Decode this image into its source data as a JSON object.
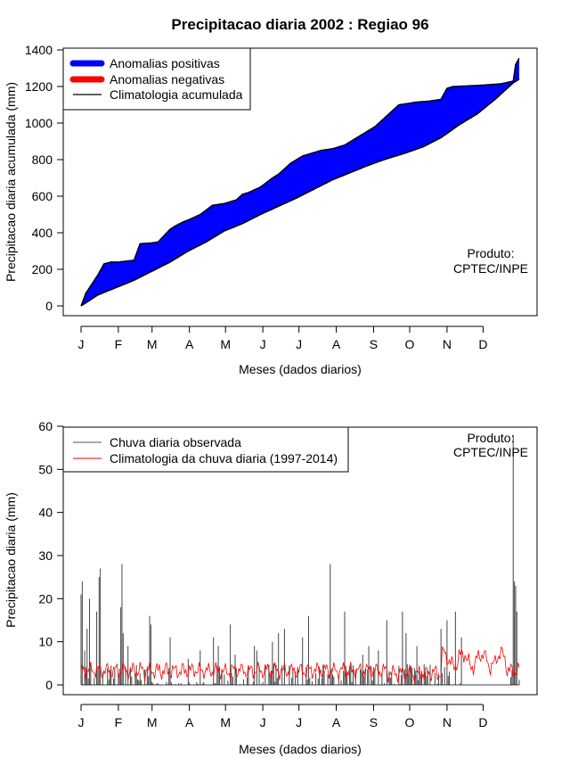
{
  "title": "Precipitacao diaria 2002 : Regiao 96",
  "chart_data": [
    {
      "type": "area",
      "ylabel": "Precipitacao diaria acumulada (mm)",
      "xlabel": "Meses (dados diarios)",
      "month_labels": [
        "J",
        "F",
        "M",
        "A",
        "M",
        "J",
        "J",
        "A",
        "S",
        "O",
        "N",
        "D"
      ],
      "ylim": [
        0,
        1400
      ],
      "yticks": [
        0,
        200,
        400,
        600,
        800,
        1000,
        1200,
        1400
      ],
      "legend": {
        "position": "top-left",
        "items": [
          {
            "label": "Anomalias positivas",
            "color": "#0000ff"
          },
          {
            "label": "Anomalias negativas",
            "color": "#ff0000"
          },
          {
            "label": "Climatologia acumulada",
            "color": "#000000"
          }
        ]
      },
      "product_label": [
        "Produto:",
        "CPTEC/INPE"
      ],
      "series": [
        {
          "name": "Precipitacao observada acumulada",
          "x": [
            1,
            5,
            10,
            15,
            20,
            26,
            32,
            45,
            50,
            60,
            65,
            75,
            80,
            86,
            90,
            100,
            110,
            120,
            130,
            135,
            140,
            150,
            160,
            165,
            175,
            180,
            185,
            195,
            200,
            210,
            220,
            225,
            235,
            245,
            255,
            265,
            275,
            280,
            290,
            300,
            305,
            310,
            320,
            330,
            340,
            350,
            360,
            362,
            365
          ],
          "values": [
            0,
            70,
            120,
            170,
            230,
            240,
            240,
            250,
            340,
            345,
            350,
            420,
            440,
            460,
            470,
            500,
            550,
            560,
            580,
            610,
            620,
            650,
            700,
            720,
            780,
            800,
            820,
            840,
            850,
            860,
            880,
            900,
            940,
            980,
            1040,
            1100,
            1110,
            1115,
            1120,
            1130,
            1190,
            1200,
            1203,
            1206,
            1210,
            1215,
            1230,
            1320,
            1355
          ]
        },
        {
          "name": "Climatologia acumulada",
          "x": [
            1,
            15,
            30,
            45,
            60,
            75,
            90,
            105,
            120,
            135,
            150,
            165,
            180,
            195,
            210,
            225,
            240,
            255,
            270,
            285,
            300,
            315,
            330,
            345,
            360,
            365
          ],
          "values": [
            0,
            60,
            100,
            140,
            190,
            240,
            300,
            350,
            410,
            450,
            500,
            545,
            590,
            640,
            690,
            730,
            770,
            805,
            835,
            870,
            920,
            990,
            1050,
            1130,
            1220,
            1240
          ]
        }
      ]
    },
    {
      "type": "bar",
      "ylabel": "Precipitacao diaria (mm)",
      "xlabel": "Meses (dados diarios)",
      "month_labels": [
        "J",
        "F",
        "M",
        "A",
        "M",
        "J",
        "J",
        "A",
        "S",
        "O",
        "N",
        "D"
      ],
      "ylim": [
        0,
        60
      ],
      "yticks": [
        0,
        10,
        20,
        30,
        40,
        50,
        60
      ],
      "legend": {
        "position": "top-left",
        "items": [
          {
            "label": "Chuva diaria observada",
            "color": "#555555"
          },
          {
            "label": "Climatologia da chuva diaria (1997-2014)",
            "color": "#ff0000"
          }
        ]
      },
      "product_label": [
        "Produto:",
        "CPTEC/INPE"
      ],
      "daily_observed_peaks": {
        "day": [
          1,
          2,
          4,
          6,
          8,
          14,
          16,
          17,
          34,
          35,
          36,
          40,
          58,
          59,
          74,
          75,
          90,
          100,
          111,
          115,
          125,
          129,
          145,
          147,
          160,
          165,
          170,
          185,
          190,
          208,
          220,
          235,
          240,
          248,
          255,
          268,
          271,
          280,
          300,
          305,
          312,
          317,
          360,
          361,
          362,
          363
        ],
        "value": [
          21,
          24,
          8,
          13,
          20,
          17,
          25,
          27,
          18,
          28,
          12,
          9,
          16,
          14,
          4,
          11,
          6,
          8,
          11,
          9,
          14,
          7,
          9,
          8,
          10,
          12,
          13,
          11,
          16,
          28,
          17,
          7,
          9,
          8,
          15,
          17,
          12,
          9,
          13,
          15,
          17,
          11,
          58,
          24,
          23,
          17
        ]
      },
      "climatology_note": "red line fluctuating mostly between 2 and 6 mm, peaking near 10 mm in December"
    }
  ]
}
